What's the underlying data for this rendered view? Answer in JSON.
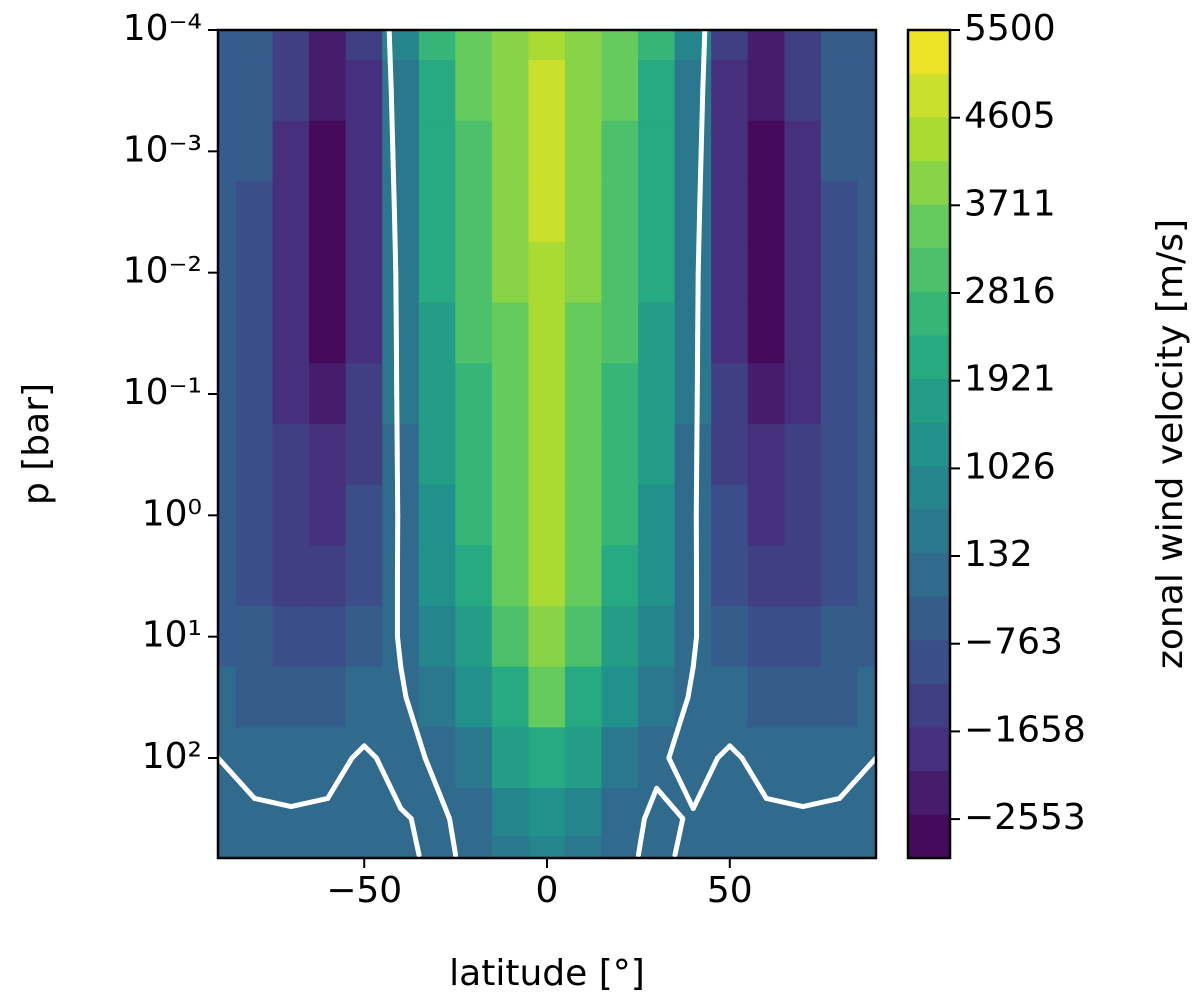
{
  "chart_data": {
    "type": "contourf",
    "xlabel": "latitude [°]",
    "ylabel": "p [bar]",
    "colorbar_label": "zonal wind velocity [m/s]",
    "colormap": "viridis",
    "levels": 19,
    "contours": [
      0
    ],
    "contour_color": "#ffffff",
    "x": [
      -90,
      -80,
      -70,
      -60,
      -50,
      -40,
      -30,
      -20,
      -10,
      0,
      10,
      20,
      30,
      40,
      50,
      60,
      70,
      80,
      90
    ],
    "y": [
      0.0001,
      0.000316,
      0.001,
      0.00316,
      0.01,
      0.0316,
      0.1,
      0.316,
      1,
      3.16,
      10,
      31.6,
      100,
      316,
      631
    ],
    "z": [
      [
        -300,
        -500,
        -1300,
        -2200,
        -1500,
        700,
        2400,
        3300,
        4000,
        4600,
        4000,
        3300,
        2400,
        700,
        -1500,
        -2200,
        -1300,
        -500,
        -300
      ],
      [
        -300,
        -600,
        -1500,
        -2500,
        -1700,
        600,
        2300,
        3300,
        4100,
        4900,
        4100,
        3300,
        2300,
        600,
        -1700,
        -2500,
        -1500,
        -600,
        -300
      ],
      [
        -300,
        -700,
        -1700,
        -2700,
        -1800,
        500,
        2200,
        3200,
        4000,
        4800,
        4000,
        3200,
        2200,
        500,
        -1800,
        -2700,
        -1700,
        -700,
        -300
      ],
      [
        -400,
        -800,
        -1800,
        -2800,
        -1900,
        400,
        2100,
        3100,
        3900,
        4700,
        3900,
        3100,
        2100,
        400,
        -1900,
        -2800,
        -1800,
        -800,
        -400
      ],
      [
        -400,
        -900,
        -1800,
        -2800,
        -1900,
        300,
        2000,
        3000,
        3800,
        4500,
        3800,
        3000,
        2000,
        300,
        -1900,
        -2800,
        -1800,
        -900,
        -400
      ],
      [
        -400,
        -900,
        -1800,
        -2600,
        -1800,
        250,
        1900,
        2900,
        3700,
        4500,
        3700,
        2900,
        1900,
        250,
        -1800,
        -2600,
        -1800,
        -900,
        -400
      ],
      [
        -400,
        -900,
        -1700,
        -2300,
        -1600,
        200,
        1800,
        2800,
        3700,
        4600,
        3700,
        2800,
        1800,
        200,
        -1600,
        -2300,
        -1700,
        -900,
        -400
      ],
      [
        -400,
        -900,
        -1600,
        -2000,
        -1400,
        150,
        1600,
        2700,
        3600,
        4500,
        3600,
        2700,
        1600,
        150,
        -1400,
        -2000,
        -1600,
        -900,
        -400
      ],
      [
        -400,
        -900,
        -1500,
        -1700,
        -1100,
        100,
        1400,
        2500,
        3500,
        4400,
        3500,
        2500,
        1400,
        100,
        -1100,
        -1700,
        -1500,
        -900,
        -400
      ],
      [
        -400,
        -800,
        -1300,
        -1300,
        -800,
        80,
        1200,
        2300,
        3300,
        4300,
        3300,
        2300,
        1200,
        80,
        -800,
        -1300,
        -1300,
        -800,
        -400
      ],
      [
        -300,
        -700,
        -1100,
        -900,
        -500,
        50,
        800,
        1900,
        3000,
        4000,
        3000,
        1900,
        800,
        50,
        -500,
        -900,
        -1100,
        -700,
        -300
      ],
      [
        -200,
        -500,
        -600,
        -400,
        -200,
        -50,
        300,
        1200,
        2300,
        3300,
        2300,
        1200,
        300,
        -50,
        -200,
        -400,
        -600,
        -500,
        -200
      ],
      [
        0,
        -100,
        -200,
        -100,
        50,
        -100,
        50,
        500,
        1500,
        2300,
        1500,
        500,
        50,
        -100,
        50,
        -100,
        -200,
        -100,
        0
      ],
      [
        50,
        50,
        50,
        50,
        50,
        20,
        -50,
        100,
        700,
        1400,
        700,
        100,
        -50,
        20,
        50,
        50,
        50,
        50,
        50
      ],
      [
        50,
        50,
        50,
        50,
        50,
        50,
        -50,
        50,
        400,
        900,
        400,
        50,
        -50,
        50,
        50,
        50,
        50,
        50,
        50
      ]
    ],
    "xlim": [
      -90,
      90
    ],
    "xticks": [
      {
        "value": -50,
        "label": "−50"
      },
      0,
      50
    ],
    "yscale": "log",
    "yinverted": true,
    "ylim": [
      0.0001,
      667
    ],
    "yticks": [
      {
        "value": 0.0001,
        "label": "10⁻⁴"
      },
      {
        "value": 0.001,
        "label": "10⁻³"
      },
      {
        "value": 0.01,
        "label": "10⁻²"
      },
      {
        "value": 0.1,
        "label": "10⁻¹"
      },
      {
        "value": 1,
        "label": "10⁰"
      },
      {
        "value": 10,
        "label": "10¹"
      },
      {
        "value": 100,
        "label": "10²"
      }
    ],
    "clim": [
      -2950,
      5500
    ],
    "cticks": [
      5500,
      4605,
      3711,
      2816,
      1921,
      1026,
      132,
      {
        "value": -763,
        "label": "−763"
      },
      {
        "value": -1658,
        "label": "−1658"
      },
      {
        "value": -2553,
        "label": "−2553"
      }
    ]
  }
}
